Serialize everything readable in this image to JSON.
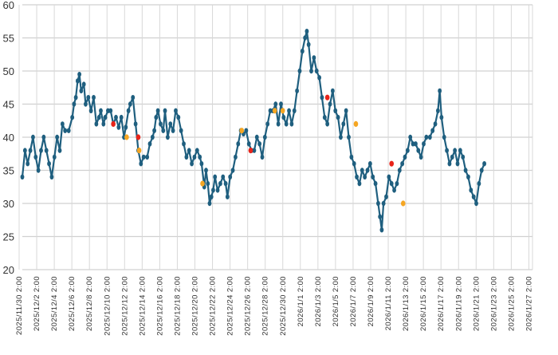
{
  "chart_data": {
    "type": "line",
    "title": "",
    "xlabel": "",
    "ylabel": "",
    "ylim": [
      20,
      60
    ],
    "yticks": [
      "20",
      "25",
      "30",
      "35",
      "40",
      "45",
      "50",
      "55",
      "60"
    ],
    "xticks": [
      "2025/11/30 2:00",
      "2025/12/2 2:00",
      "2025/12/4 2:00",
      "2025/12/6 2:00",
      "2025/12/8 2:00",
      "2025/12/10 2:00",
      "2025/12/12 2:00",
      "2025/12/14 2:00",
      "2025/12/16 2:00",
      "2025/12/18 2:00",
      "2025/12/20 2:00",
      "2025/12/22 2:00",
      "2025/12/24 2:00",
      "2025/12/26 2:00",
      "2025/12/28 2:00",
      "2025/12/30 2:00",
      "2026/1/1 2:00",
      "2026/1/3 2:00",
      "2026/1/5 2:00",
      "2026/1/7 2:00",
      "2026/1/9 2:00",
      "2026/1/11 2:00",
      "2026/1/13 2:00",
      "2026/1/15 2:00",
      "2026/1/17 2:00",
      "2026/1/19 2:00",
      "2026/1/21 2:00",
      "2026/1/23 2:00",
      "2026/1/25 2:00",
      "2026/1/27 2:00"
    ],
    "x_range_days": [
      0,
      57.2
    ],
    "grid": true,
    "legend": "none",
    "series": [
      {
        "name": "main",
        "color": "#1f5f7f",
        "points": [
          [
            0.0,
            34
          ],
          [
            0.3,
            38
          ],
          [
            0.6,
            36
          ],
          [
            0.9,
            38
          ],
          [
            1.2,
            40
          ],
          [
            1.5,
            37
          ],
          [
            1.8,
            35
          ],
          [
            2.1,
            38
          ],
          [
            2.4,
            40
          ],
          [
            2.7,
            38
          ],
          [
            3.0,
            36
          ],
          [
            3.3,
            34
          ],
          [
            3.6,
            37
          ],
          [
            3.9,
            40
          ],
          [
            4.2,
            38
          ],
          [
            4.5,
            42
          ],
          [
            4.8,
            41
          ],
          [
            5.2,
            41
          ],
          [
            5.6,
            43
          ],
          [
            5.8,
            45
          ],
          [
            6.0,
            46
          ],
          [
            6.2,
            48.5
          ],
          [
            6.4,
            49.5
          ],
          [
            6.6,
            47
          ],
          [
            6.9,
            48
          ],
          [
            7.1,
            45
          ],
          [
            7.4,
            46
          ],
          [
            7.7,
            44
          ],
          [
            8.0,
            46
          ],
          [
            8.3,
            42
          ],
          [
            8.6,
            43
          ],
          [
            8.8,
            44
          ],
          [
            9.1,
            42
          ],
          [
            9.3,
            43
          ],
          [
            9.6,
            44
          ],
          [
            9.9,
            44
          ],
          [
            10.2,
            42
          ],
          [
            10.5,
            43
          ],
          [
            10.8,
            41.5
          ],
          [
            11.1,
            43
          ],
          [
            11.4,
            40
          ],
          [
            11.6,
            41.5
          ],
          [
            11.9,
            44
          ],
          [
            12.1,
            45
          ],
          [
            12.4,
            46
          ],
          [
            12.7,
            42
          ],
          [
            13.0,
            38
          ],
          [
            13.3,
            36
          ],
          [
            13.6,
            37
          ],
          [
            14.0,
            37
          ],
          [
            14.3,
            39
          ],
          [
            14.6,
            40
          ],
          [
            14.8,
            41
          ],
          [
            15.0,
            43
          ],
          [
            15.2,
            44
          ],
          [
            15.5,
            42
          ],
          [
            15.8,
            41
          ],
          [
            16.0,
            44
          ],
          [
            16.3,
            40
          ],
          [
            16.6,
            42
          ],
          [
            16.9,
            41
          ],
          [
            17.2,
            44
          ],
          [
            17.5,
            43
          ],
          [
            17.8,
            41
          ],
          [
            18.1,
            39
          ],
          [
            18.4,
            37
          ],
          [
            18.7,
            38
          ],
          [
            19.0,
            36
          ],
          [
            19.3,
            37
          ],
          [
            19.6,
            38
          ],
          [
            19.9,
            37
          ],
          [
            20.1,
            36
          ],
          [
            20.4,
            32.5
          ],
          [
            20.6,
            35
          ],
          [
            20.8,
            33
          ],
          [
            21.0,
            30
          ],
          [
            21.2,
            31
          ],
          [
            21.4,
            32
          ],
          [
            21.6,
            34
          ],
          [
            21.9,
            32
          ],
          [
            22.2,
            33
          ],
          [
            22.5,
            34
          ],
          [
            22.8,
            33
          ],
          [
            23.0,
            31
          ],
          [
            23.3,
            34
          ],
          [
            23.6,
            35
          ],
          [
            23.9,
            37
          ],
          [
            24.2,
            39
          ],
          [
            24.5,
            41
          ],
          [
            24.8,
            40.5
          ],
          [
            25.1,
            41
          ],
          [
            25.4,
            39
          ],
          [
            25.7,
            38
          ],
          [
            26.0,
            38
          ],
          [
            26.3,
            40
          ],
          [
            26.6,
            39
          ],
          [
            26.9,
            37
          ],
          [
            27.2,
            40
          ],
          [
            27.5,
            42
          ],
          [
            27.8,
            44
          ],
          [
            28.1,
            44
          ],
          [
            28.4,
            45
          ],
          [
            28.7,
            42
          ],
          [
            29.0,
            45
          ],
          [
            29.3,
            43
          ],
          [
            29.6,
            42
          ],
          [
            29.9,
            44
          ],
          [
            30.2,
            42
          ],
          [
            30.5,
            44
          ],
          [
            30.8,
            47
          ],
          [
            31.1,
            50
          ],
          [
            31.4,
            53
          ],
          [
            31.7,
            55
          ],
          [
            31.9,
            56
          ],
          [
            32.1,
            54
          ],
          [
            32.4,
            50
          ],
          [
            32.7,
            52
          ],
          [
            33.0,
            50
          ],
          [
            33.3,
            49
          ],
          [
            33.6,
            46
          ],
          [
            33.9,
            43
          ],
          [
            34.2,
            42
          ],
          [
            34.5,
            45
          ],
          [
            34.8,
            47
          ],
          [
            35.1,
            44
          ],
          [
            35.4,
            43
          ],
          [
            35.7,
            40
          ],
          [
            36.0,
            42
          ],
          [
            36.3,
            44
          ],
          [
            36.6,
            40
          ],
          [
            36.9,
            37
          ],
          [
            37.2,
            36
          ],
          [
            37.5,
            34
          ],
          [
            37.8,
            33
          ],
          [
            38.1,
            35
          ],
          [
            38.4,
            34
          ],
          [
            38.7,
            35
          ],
          [
            39.0,
            36
          ],
          [
            39.3,
            34
          ],
          [
            39.6,
            33
          ],
          [
            39.9,
            30
          ],
          [
            40.1,
            28
          ],
          [
            40.3,
            26
          ],
          [
            40.5,
            30
          ],
          [
            40.8,
            31
          ],
          [
            41.1,
            34
          ],
          [
            41.4,
            33
          ],
          [
            41.7,
            32
          ],
          [
            42.0,
            33
          ],
          [
            42.3,
            35
          ],
          [
            42.6,
            36
          ],
          [
            42.9,
            37
          ],
          [
            43.2,
            38
          ],
          [
            43.5,
            40
          ],
          [
            43.8,
            39
          ],
          [
            44.1,
            39
          ],
          [
            44.4,
            38
          ],
          [
            44.7,
            37
          ],
          [
            45.0,
            39
          ],
          [
            45.3,
            40
          ],
          [
            45.7,
            40
          ],
          [
            46.0,
            41
          ],
          [
            46.3,
            42
          ],
          [
            46.6,
            44
          ],
          [
            46.8,
            47
          ],
          [
            47.0,
            43
          ],
          [
            47.3,
            40
          ],
          [
            47.6,
            38
          ],
          [
            47.9,
            36
          ],
          [
            48.2,
            37
          ],
          [
            48.5,
            38
          ],
          [
            48.8,
            36
          ],
          [
            49.1,
            38
          ],
          [
            49.4,
            37
          ],
          [
            49.7,
            35
          ],
          [
            50.0,
            34
          ],
          [
            50.3,
            32
          ],
          [
            50.6,
            31
          ],
          [
            50.9,
            30
          ],
          [
            51.2,
            33
          ],
          [
            51.5,
            35
          ],
          [
            51.8,
            36
          ]
        ]
      }
    ],
    "markers": [
      {
        "x": 10.2,
        "y": 42,
        "color": "#e8241a"
      },
      {
        "x": 13.0,
        "y": 40,
        "color": "#e8241a"
      },
      {
        "x": 25.6,
        "y": 38,
        "color": "#e8241a"
      },
      {
        "x": 34.2,
        "y": 46,
        "color": "#e8241a"
      },
      {
        "x": 41.4,
        "y": 36,
        "color": "#e8241a"
      },
      {
        "x": 11.7,
        "y": 40,
        "color": "#f5a623"
      },
      {
        "x": 13.1,
        "y": 38,
        "color": "#f5a623"
      },
      {
        "x": 20.2,
        "y": 33,
        "color": "#f5a623"
      },
      {
        "x": 24.6,
        "y": 41,
        "color": "#f5a623"
      },
      {
        "x": 28.3,
        "y": 44,
        "color": "#f5a623"
      },
      {
        "x": 29.2,
        "y": 44,
        "color": "#f5a623"
      },
      {
        "x": 37.4,
        "y": 42,
        "color": "#f5a623"
      },
      {
        "x": 42.7,
        "y": 30,
        "color": "#f5a623"
      }
    ]
  }
}
